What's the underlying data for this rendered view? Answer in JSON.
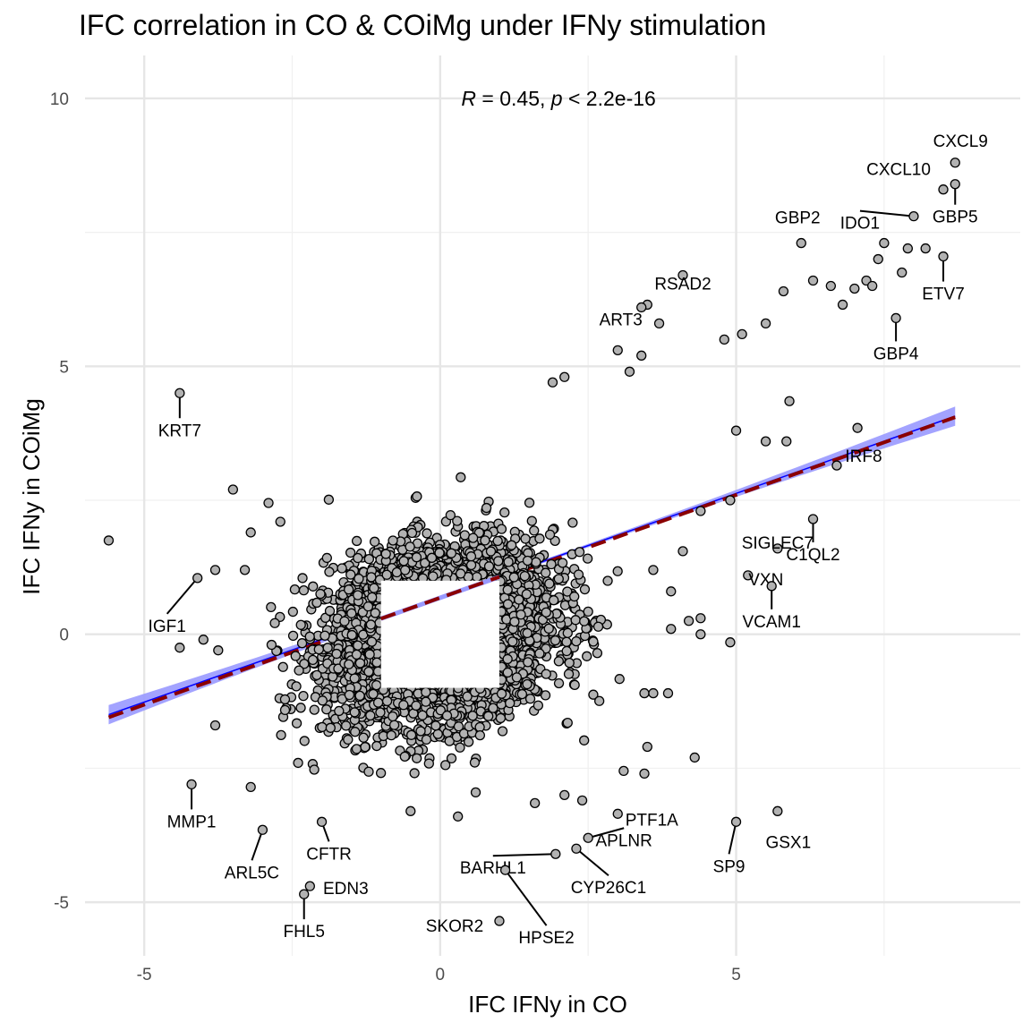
{
  "chart_data": {
    "type": "scatter",
    "title": "IFC correlation in CO & COiMg under IFNy stimulation",
    "xlabel": "IFC IFNy in CO",
    "ylabel": "IFC IFNy in COiMg",
    "xlim": [
      -6.0,
      9.8
    ],
    "ylim": [
      -6.0,
      10.8
    ],
    "x_ticks": [
      -5,
      0,
      5
    ],
    "y_ticks": [
      -5,
      0,
      5,
      10
    ],
    "x_tick_labels": [
      "-5",
      "0",
      "5"
    ],
    "y_tick_labels": [
      "-5",
      "0",
      "5",
      "10"
    ],
    "grid": true,
    "legend": "none",
    "stat_annotation": {
      "r_symbol": "R",
      "r_text": " = 0.45, ",
      "p_symbol": "p",
      "p_text": " < 2.2e-16",
      "x": 2.0,
      "y": 10.0
    },
    "regression_lines": [
      {
        "style": "linear-fit",
        "color": "#0000ff",
        "band_color": "#9999ff",
        "x": [
          -5.6,
          8.7
        ],
        "y": [
          -1.5,
          4.07
        ],
        "band_halfwidth_ends": 0.18,
        "band_halfwidth_center": 0.03
      },
      {
        "style": "identity-scaled-dashed",
        "color": "#8b0000",
        "x": [
          -5.6,
          8.7
        ],
        "y": [
          -1.55,
          4.05
        ]
      }
    ],
    "excluded_region": {
      "x": [
        -1.0,
        1.0
      ],
      "y": [
        -1.0,
        1.0
      ]
    },
    "bulk_points": {
      "count": 1700,
      "x_range": [
        -3.0,
        3.0
      ],
      "y_range": [
        -3.0,
        3.0
      ],
      "color": "#b2b2b2"
    },
    "labeled_points": [
      {
        "gene": "CXCL9",
        "x": 8.7,
        "y": 8.8
      },
      {
        "gene": "GBP5",
        "x": 8.7,
        "y": 8.4
      },
      {
        "gene": "CXCL10",
        "x": 8.5,
        "y": 8.3
      },
      {
        "gene": "IDO1",
        "x": 8.0,
        "y": 7.8
      },
      {
        "gene": "ETV7",
        "x": 8.5,
        "y": 7.05
      },
      {
        "gene": "GBP4",
        "x": 7.7,
        "y": 5.9
      },
      {
        "gene": "GBP2",
        "x": 6.1,
        "y": 7.3
      },
      {
        "gene": "RSAD2",
        "x": 4.1,
        "y": 6.7
      },
      {
        "gene": "ART3",
        "x": 3.4,
        "y": 6.1
      },
      {
        "gene": "IRF8",
        "x": 6.7,
        "y": 3.15
      },
      {
        "gene": "C1QL2",
        "x": 6.3,
        "y": 2.15
      },
      {
        "gene": "SIGLEC7",
        "x": 5.7,
        "y": 1.6
      },
      {
        "gene": "VXN",
        "x": 5.2,
        "y": 1.1
      },
      {
        "gene": "VCAM1",
        "x": 5.6,
        "y": 0.9
      },
      {
        "gene": "KRT7",
        "x": -4.4,
        "y": 4.5
      },
      {
        "gene": "IGF1",
        "x": -4.1,
        "y": 1.05
      },
      {
        "gene": "MMP1",
        "x": -4.2,
        "y": -2.8
      },
      {
        "gene": "ARL5C",
        "x": -3.0,
        "y": -3.65
      },
      {
        "gene": "CFTR",
        "x": -2.0,
        "y": -3.5
      },
      {
        "gene": "EDN3",
        "x": -2.2,
        "y": -4.7
      },
      {
        "gene": "FHL5",
        "x": -2.3,
        "y": -4.85
      },
      {
        "gene": "PTF1A",
        "x": 3.0,
        "y": -3.35
      },
      {
        "gene": "APLNR",
        "x": 2.5,
        "y": -3.8
      },
      {
        "gene": "CYP26C1",
        "x": 2.3,
        "y": -4.0
      },
      {
        "gene": "BARHL1",
        "x": 1.95,
        "y": -4.1
      },
      {
        "gene": "HPSE2",
        "x": 1.1,
        "y": -4.4
      },
      {
        "gene": "SKOR2",
        "x": 1.0,
        "y": -5.35
      },
      {
        "gene": "SP9",
        "x": 5.0,
        "y": -3.5
      },
      {
        "gene": "GSX1",
        "x": 5.7,
        "y": -3.3
      }
    ],
    "unlabeled_outliers": [
      {
        "x": -5.6,
        "y": 1.75
      },
      {
        "x": -3.5,
        "y": 2.7
      },
      {
        "x": -2.9,
        "y": 2.45
      },
      {
        "x": -3.2,
        "y": 1.9
      },
      {
        "x": -3.8,
        "y": 1.2
      },
      {
        "x": -4.4,
        "y": -0.25
      },
      {
        "x": -4.0,
        "y": -0.1
      },
      {
        "x": -3.75,
        "y": -0.3
      },
      {
        "x": -3.3,
        "y": 1.2
      },
      {
        "x": -3.8,
        "y": -1.7
      },
      {
        "x": -3.2,
        "y": -2.85
      },
      {
        "x": -2.4,
        "y": -2.4
      },
      {
        "x": -2.7,
        "y": 2.1
      },
      {
        "x": 1.9,
        "y": 4.7
      },
      {
        "x": 2.1,
        "y": 4.8
      },
      {
        "x": 3.5,
        "y": 6.15
      },
      {
        "x": 3.7,
        "y": 5.8
      },
      {
        "x": 3.0,
        "y": 5.3
      },
      {
        "x": 3.4,
        "y": 5.2
      },
      {
        "x": 3.2,
        "y": 4.9
      },
      {
        "x": 4.8,
        "y": 5.5
      },
      {
        "x": 5.1,
        "y": 5.6
      },
      {
        "x": 5.5,
        "y": 5.8
      },
      {
        "x": 5.8,
        "y": 6.4
      },
      {
        "x": 6.3,
        "y": 6.6
      },
      {
        "x": 6.6,
        "y": 6.5
      },
      {
        "x": 6.8,
        "y": 6.15
      },
      {
        "x": 7.0,
        "y": 6.45
      },
      {
        "x": 7.2,
        "y": 6.6
      },
      {
        "x": 7.4,
        "y": 7.0
      },
      {
        "x": 7.5,
        "y": 7.3
      },
      {
        "x": 7.9,
        "y": 7.2
      },
      {
        "x": 8.2,
        "y": 7.2
      },
      {
        "x": 7.8,
        "y": 6.75
      },
      {
        "x": 7.3,
        "y": 6.5
      },
      {
        "x": 5.9,
        "y": 4.35
      },
      {
        "x": 5.0,
        "y": 3.8
      },
      {
        "x": 5.5,
        "y": 3.6
      },
      {
        "x": 5.85,
        "y": 3.6
      },
      {
        "x": 7.05,
        "y": 3.85
      },
      {
        "x": 4.4,
        "y": 2.3
      },
      {
        "x": 4.9,
        "y": 2.5
      },
      {
        "x": 4.1,
        "y": 1.55
      },
      {
        "x": 3.6,
        "y": 1.2
      },
      {
        "x": 3.9,
        "y": 0.8
      },
      {
        "x": 4.4,
        "y": 0.3
      },
      {
        "x": 4.2,
        "y": 0.25
      },
      {
        "x": 3.9,
        "y": 0.1
      },
      {
        "x": 4.4,
        "y": 0.0
      },
      {
        "x": 4.9,
        "y": -0.15
      },
      {
        "x": 3.45,
        "y": -1.1
      },
      {
        "x": 3.6,
        "y": -1.1
      },
      {
        "x": 3.85,
        "y": -1.1
      },
      {
        "x": 3.5,
        "y": -2.1
      },
      {
        "x": 4.3,
        "y": -2.3
      },
      {
        "x": 3.1,
        "y": -2.55
      },
      {
        "x": 3.45,
        "y": -2.6
      },
      {
        "x": 2.4,
        "y": -3.1
      },
      {
        "x": 2.1,
        "y": -3.0
      },
      {
        "x": 1.6,
        "y": -3.15
      },
      {
        "x": 0.6,
        "y": -2.95
      },
      {
        "x": -0.5,
        "y": -3.3
      },
      {
        "x": 0.3,
        "y": -3.4
      }
    ]
  }
}
